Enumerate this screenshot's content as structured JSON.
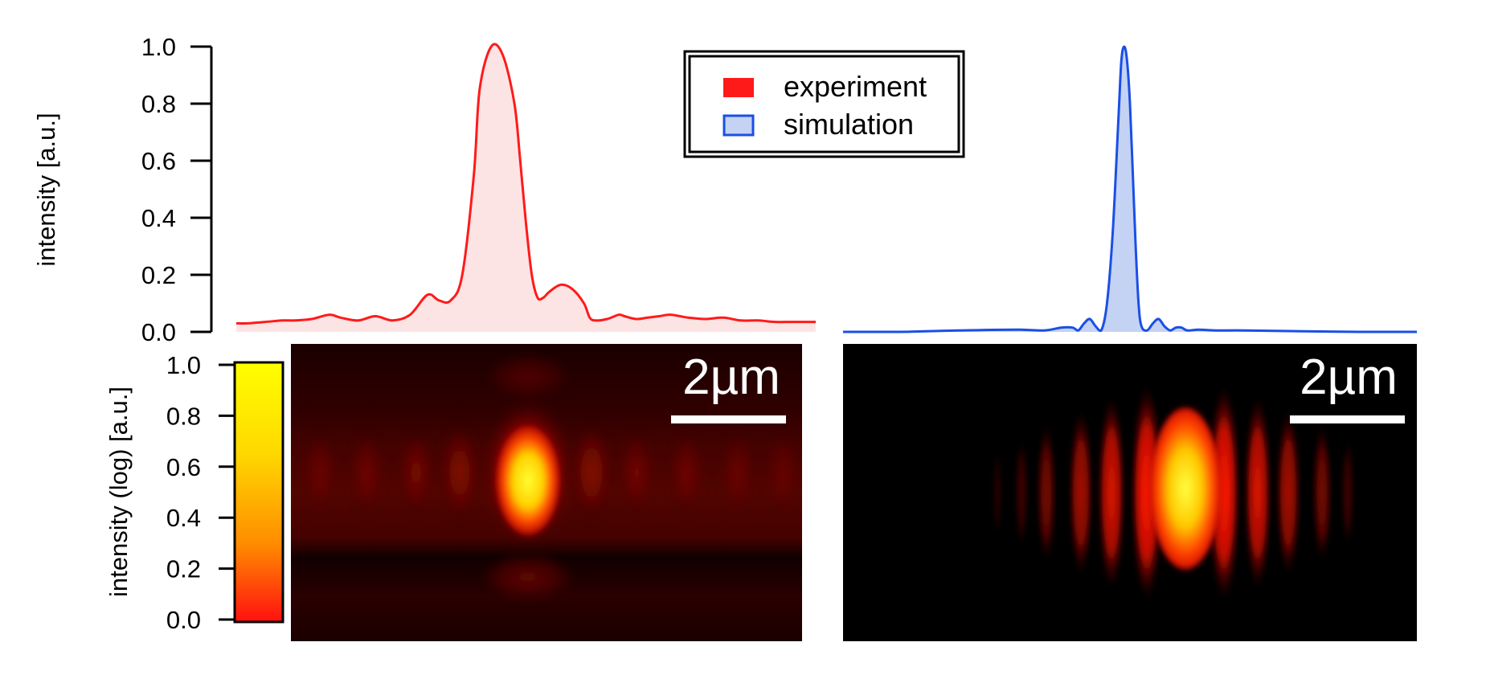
{
  "chart_data": [
    {
      "type": "area",
      "panel": "experiment profile",
      "ylabel": "intensity [a.u.]",
      "ylim": [
        0,
        1.0
      ],
      "yticks": [
        "0.0",
        "0.2",
        "0.4",
        "0.6",
        "0.8",
        "1.0"
      ],
      "ytick_values": [
        0,
        0.2,
        0.4,
        0.6,
        0.8,
        1.0
      ],
      "xlim": [
        0,
        1
      ],
      "series": [
        {
          "name": "experiment",
          "color": "#ff1a1a",
          "fill": "#fde4e4",
          "x": [
            0,
            0.02,
            0.05,
            0.08,
            0.1,
            0.13,
            0.16,
            0.18,
            0.21,
            0.24,
            0.27,
            0.3,
            0.33,
            0.35,
            0.37,
            0.39,
            0.41,
            0.42,
            0.44,
            0.46,
            0.48,
            0.49,
            0.5,
            0.51,
            0.52,
            0.53,
            0.54,
            0.56,
            0.58,
            0.6,
            0.61,
            0.62,
            0.64,
            0.66,
            0.67,
            0.69,
            0.71,
            0.73,
            0.75,
            0.78,
            0.81,
            0.84,
            0.87,
            0.9,
            0.93,
            0.96,
            1.0
          ],
          "values": [
            0.03,
            0.03,
            0.035,
            0.04,
            0.04,
            0.045,
            0.06,
            0.05,
            0.04,
            0.055,
            0.04,
            0.06,
            0.13,
            0.11,
            0.11,
            0.2,
            0.55,
            0.85,
            1.0,
            0.97,
            0.8,
            0.6,
            0.38,
            0.2,
            0.12,
            0.12,
            0.14,
            0.165,
            0.15,
            0.1,
            0.05,
            0.04,
            0.045,
            0.06,
            0.055,
            0.045,
            0.05,
            0.055,
            0.06,
            0.05,
            0.045,
            0.05,
            0.04,
            0.04,
            0.035,
            0.035,
            0.035
          ]
        }
      ]
    },
    {
      "type": "area",
      "panel": "simulation profile",
      "ylim": [
        0,
        1.0
      ],
      "xlim": [
        0,
        1
      ],
      "series": [
        {
          "name": "simulation",
          "color": "#1a4fe6",
          "fill": "#c4d2f3",
          "x": [
            0,
            0.1,
            0.2,
            0.3,
            0.35,
            0.38,
            0.4,
            0.41,
            0.42,
            0.43,
            0.44,
            0.45,
            0.46,
            0.47,
            0.48,
            0.485,
            0.49,
            0.495,
            0.5,
            0.505,
            0.51,
            0.515,
            0.52,
            0.53,
            0.54,
            0.55,
            0.56,
            0.57,
            0.58,
            0.59,
            0.6,
            0.62,
            0.65,
            0.7,
            0.8,
            0.9,
            1.0
          ],
          "values": [
            0.0,
            0.0,
            0.005,
            0.008,
            0.005,
            0.015,
            0.015,
            0.005,
            0.03,
            0.045,
            0.02,
            0.005,
            0.1,
            0.35,
            0.75,
            0.95,
            1.0,
            0.95,
            0.8,
            0.55,
            0.3,
            0.1,
            0.02,
            0.005,
            0.03,
            0.045,
            0.02,
            0.005,
            0.015,
            0.015,
            0.005,
            0.008,
            0.005,
            0.005,
            0.002,
            0.0,
            0.0
          ]
        }
      ]
    },
    {
      "type": "heatmap",
      "panel": "experiment image",
      "colorbar": {
        "label": "intensity (log) [a.u.]",
        "range": [
          0,
          1.0
        ],
        "ticks": [
          "0.0",
          "0.2",
          "0.4",
          "0.6",
          "0.8",
          "1.0"
        ],
        "tick_values": [
          0,
          0.2,
          0.4,
          0.6,
          0.8,
          1.0
        ],
        "colors": [
          "#ff1010",
          "#ff8c00",
          "#ffd800",
          "#ffff00"
        ]
      },
      "scale_bar": "2µm"
    },
    {
      "type": "heatmap",
      "panel": "simulation image",
      "scale_bar": "2µm"
    }
  ],
  "legend": {
    "items": [
      {
        "label": "experiment",
        "color": "#ff1a1a",
        "style": "solid"
      },
      {
        "label": "simulation",
        "color": "#c4d2f3",
        "border": "#1a4fe6",
        "style": "outlined"
      }
    ]
  },
  "colors": {
    "image_background": "#000000",
    "experiment_line": "#ff1a1a",
    "simulation_line": "#1a4fe6"
  }
}
